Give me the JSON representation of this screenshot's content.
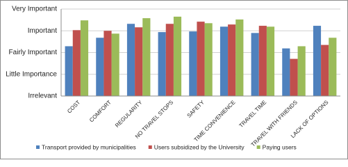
{
  "chart_data": {
    "type": "bar",
    "categories": [
      "COST",
      "COMFORT",
      "REGULARITY",
      "NO TRAVEL STOPS",
      "SAFETY",
      "TIME CONVENIENCE",
      "TRAVEL TIME",
      "TRAVEL WITH FRIENDS",
      "LACK OF OPTIONS"
    ],
    "series": [
      {
        "name": "Transport provided by municipalities",
        "color": "#4f81bd",
        "values": [
          3.29,
          3.68,
          4.32,
          3.94,
          3.97,
          4.19,
          3.9,
          3.19,
          4.23
        ]
      },
      {
        "name": "Users subsidized by the University",
        "color": "#c0504d",
        "values": [
          4.03,
          4.0,
          4.16,
          4.32,
          4.42,
          4.29,
          4.23,
          2.71,
          3.35
        ]
      },
      {
        "name": "Paying users",
        "color": "#9bbb59",
        "values": [
          4.48,
          3.87,
          4.58,
          4.65,
          4.35,
          4.52,
          4.19,
          3.29,
          3.68
        ]
      }
    ],
    "ylim": [
      1,
      5
    ],
    "yticks": [
      {
        "value": 1,
        "label": "Irrelevant"
      },
      {
        "value": 2,
        "label": "Little Importance"
      },
      {
        "value": 3,
        "label": "Fairly Important"
      },
      {
        "value": 4,
        "label": "Important"
      },
      {
        "value": 5,
        "label": "Very Important"
      }
    ],
    "grid": true,
    "legend": "bottom"
  }
}
